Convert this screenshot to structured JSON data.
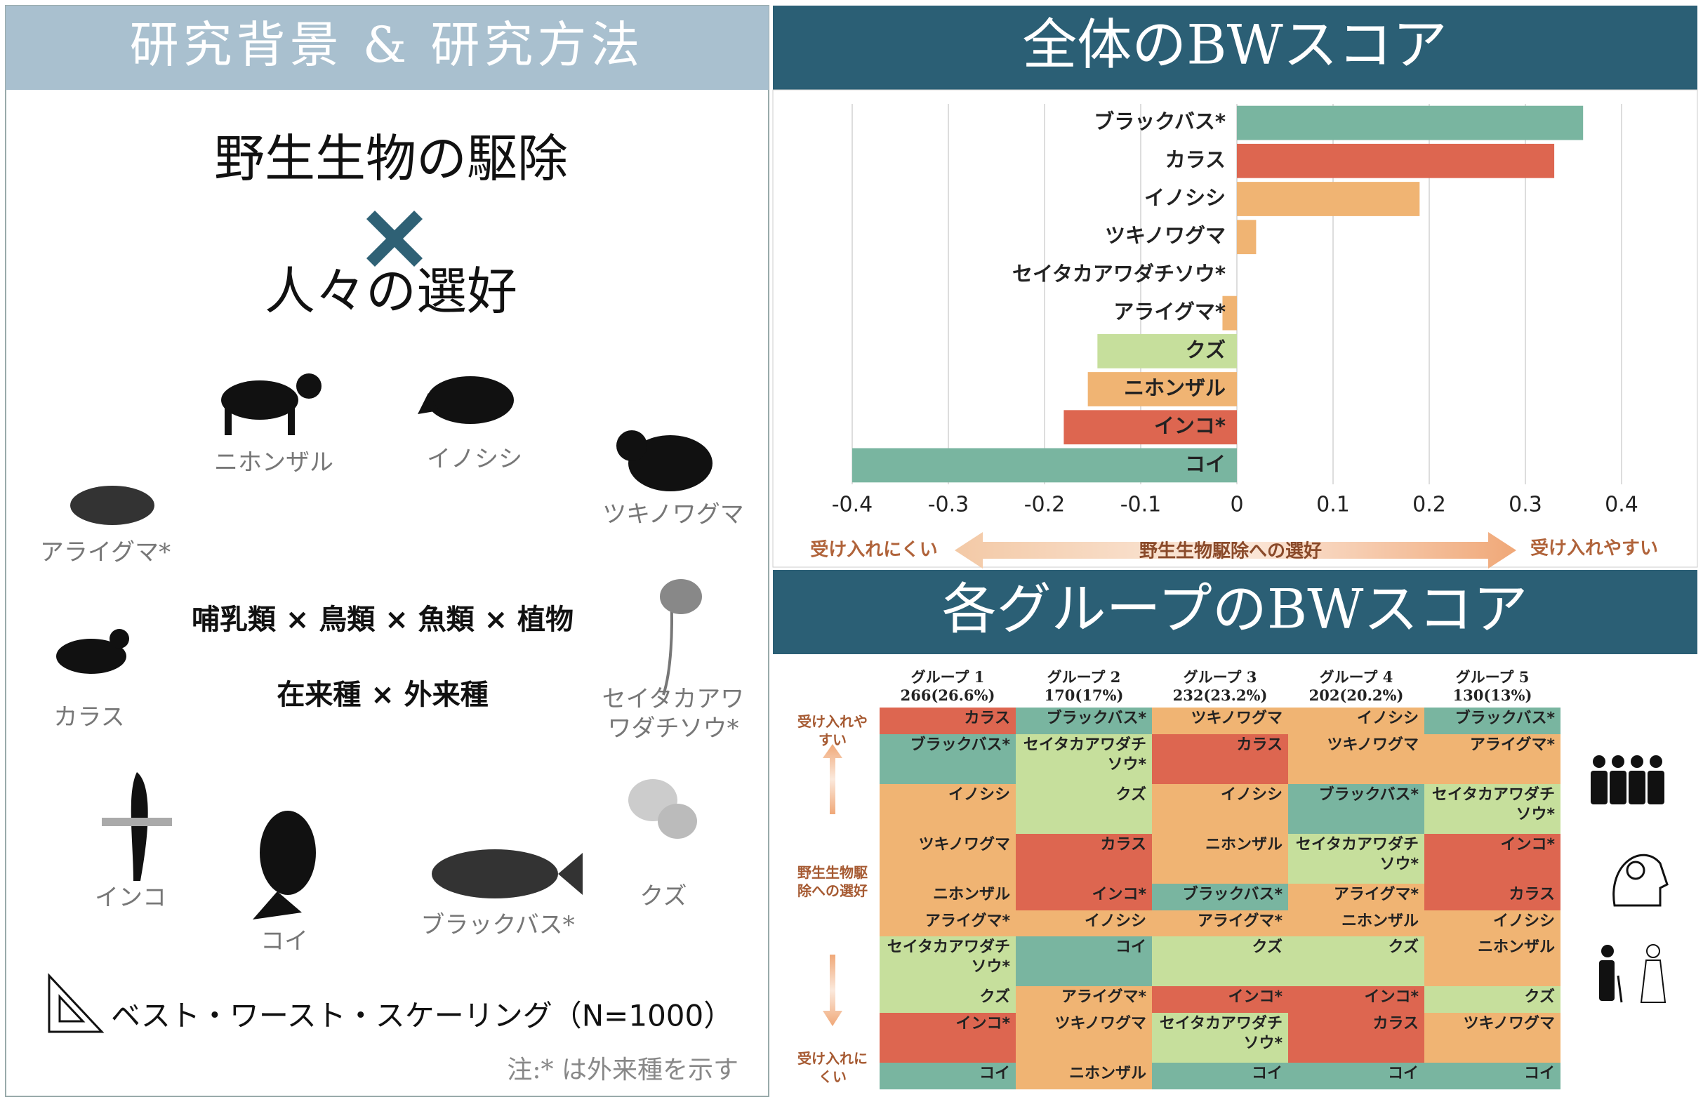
{
  "left": {
    "header": "研究背景 & 研究方法",
    "title": "野生生物の駆除",
    "subtitle": "人々の選好",
    "species": [
      [
        "ニホンザル"
      ],
      [
        "イノシシ"
      ],
      [
        "ツキノワグマ"
      ],
      [
        "アライグマ*"
      ],
      [
        "カラス"
      ],
      [
        "セイタカアワ",
        "ワダチソウ*"
      ],
      [
        "インコ"
      ],
      [
        "コイ"
      ],
      [
        "ブラックバス*"
      ],
      [
        "クズ"
      ]
    ],
    "taxa": "哺乳類 × 鳥類 × 魚類 × 植物",
    "origin": "在来種 × 外来種",
    "method": "ベスト・ワースト・スケーリング（N=1000）",
    "note": "注:* は外来種を示す"
  },
  "chart_header": "全体のBWスコア",
  "chart_data": {
    "type": "bar",
    "orientation": "horizontal",
    "categories": [
      "ブラックバス*",
      "カラス",
      "イノシシ",
      "ツキノワグマ",
      "セイタカアワダチソウ*",
      "アライグマ*",
      "クズ",
      "ニホンザル",
      "インコ*",
      "コイ"
    ],
    "values": [
      0.36,
      0.33,
      0.19,
      0.02,
      0,
      -0.015,
      -0.145,
      -0.155,
      -0.18,
      -0.4
    ],
    "colors": [
      "#79b5a0",
      "#dd6650",
      "#f0b473",
      "#f0b473",
      "#c6df9c",
      "#f0b473",
      "#c6df9c",
      "#f0b473",
      "#dd6650",
      "#79b5a0"
    ],
    "xlim": [
      -0.4,
      0.4
    ],
    "xticks": [
      -0.4,
      -0.3,
      -0.2,
      -0.1,
      0,
      0.1,
      0.2,
      0.3,
      0.4
    ],
    "grid": true,
    "annotations": {
      "left": "受け入れにくい",
      "center": "野生生物駆除への選好",
      "right": "受け入れやすい"
    }
  },
  "group_header": "各グループのBWスコア",
  "groups": {
    "columns": [
      {
        "name": "グループ 1",
        "size": "266(26.6%)"
      },
      {
        "name": "グループ 2",
        "size": "170(17%)"
      },
      {
        "name": "グループ 3",
        "size": "232(23.2%)"
      },
      {
        "name": "グループ 4",
        "size": "202(20.2%)"
      },
      {
        "name": "グループ 5",
        "size": "130(13%)"
      }
    ],
    "rows": [
      [
        "カラス",
        "ブラックバス*",
        "ツキノワグマ",
        "イノシシ",
        "ブラックバス*"
      ],
      [
        "ブラックバス*",
        "セイタカアワダチソウ*",
        "カラス",
        "ツキノワグマ",
        "アライグマ*"
      ],
      [
        "イノシシ",
        "クズ",
        "イノシシ",
        "ブラックバス*",
        "セイタカアワダチソウ*"
      ],
      [
        "ツキノワグマ",
        "カラス",
        "ニホンザル",
        "セイタカアワダチソウ*",
        "インコ*"
      ],
      [
        "ニホンザル",
        "インコ*",
        "ブラックバス*",
        "アライグマ*",
        "カラス"
      ],
      [
        "アライグマ*",
        "イノシシ",
        "アライグマ*",
        "ニホンザル",
        "イノシシ"
      ],
      [
        "セイタカアワダチソウ*",
        "コイ",
        "クズ",
        "クズ",
        "ニホンザル"
      ],
      [
        "クズ",
        "アライグマ*",
        "インコ*",
        "インコ*",
        "クズ"
      ],
      [
        "インコ*",
        "ツキノワグマ",
        "セイタカアワダチソウ*",
        "カラス",
        "ツキノワグマ"
      ],
      [
        "コイ",
        "ニホンザル",
        "コイ",
        "コイ",
        "コイ"
      ]
    ],
    "axis_labels": {
      "top": "受け入れやすい",
      "middle": "野生生物駆除への選好",
      "bottom": "受け入れにくい"
    }
  }
}
